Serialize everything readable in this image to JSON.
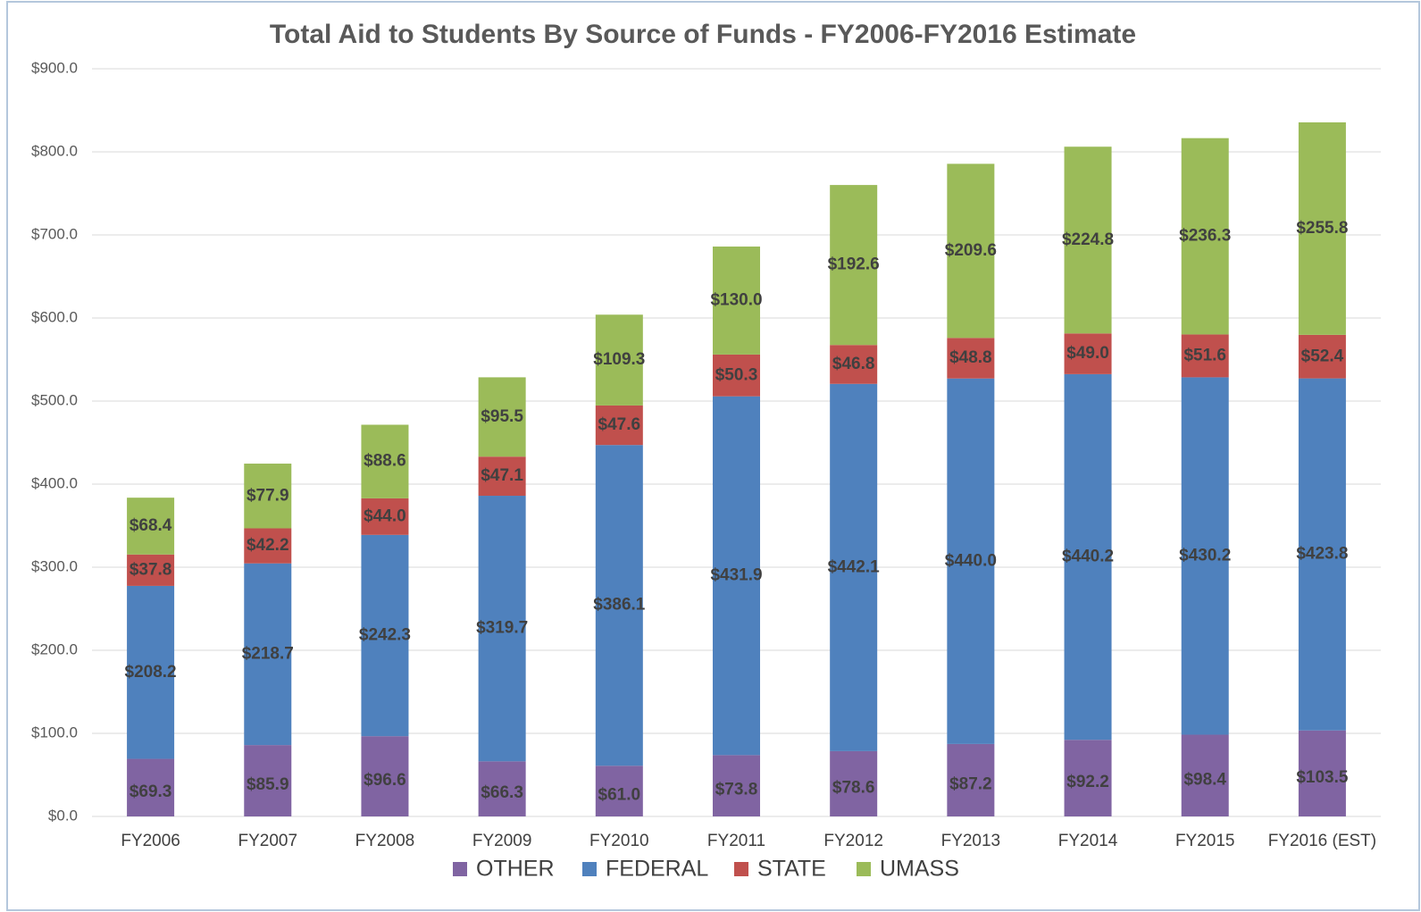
{
  "chart_data": {
    "type": "stacked_bar",
    "title": "Total Aid to Students By Source of Funds - FY2006-FY2016 Estimate",
    "categories": [
      "FY2006",
      "FY2007",
      "FY2008",
      "FY2009",
      "FY2010",
      "FY2011",
      "FY2012",
      "FY2013",
      "FY2014",
      "FY2015",
      "FY2016 (EST)"
    ],
    "series": [
      {
        "name": "OTHER",
        "color": "#8064a2",
        "values": [
          69.3,
          85.9,
          96.6,
          66.3,
          61.0,
          73.8,
          78.6,
          87.2,
          92.2,
          98.4,
          103.5
        ],
        "value_labels": [
          "$69.3",
          "$85.9",
          "$96.6",
          "$66.3",
          "$61.0",
          "$73.8",
          "$78.6",
          "$87.2",
          "$92.2",
          "$98.4",
          "$103.5"
        ]
      },
      {
        "name": "FEDERAL",
        "color": "#4f81bd",
        "values": [
          208.2,
          218.7,
          242.3,
          319.7,
          386.1,
          431.9,
          442.1,
          440.0,
          440.2,
          430.2,
          423.8
        ],
        "value_labels": [
          "$208.2",
          "$218.7",
          "$242.3",
          "$319.7",
          "$386.1",
          "$431.9",
          "$442.1",
          "$440.0",
          "$440.2",
          "$430.2",
          "$423.8"
        ]
      },
      {
        "name": "STATE",
        "color": "#c0504d",
        "values": [
          37.8,
          42.2,
          44.0,
          47.1,
          47.6,
          50.3,
          46.8,
          48.8,
          49.0,
          51.6,
          52.4
        ],
        "value_labels": [
          "$37.8",
          "$42.2",
          "$44.0",
          "$47.1",
          "$47.6",
          "$50.3",
          "$46.8",
          "$48.8",
          "$49.0",
          "$51.6",
          "$52.4"
        ]
      },
      {
        "name": "UMASS",
        "color": "#9bbb59",
        "values": [
          68.4,
          77.9,
          88.6,
          95.5,
          109.3,
          130.0,
          192.6,
          209.6,
          224.8,
          236.3,
          255.8
        ],
        "value_labels": [
          "$68.4",
          "$77.9",
          "$88.6",
          "$95.5",
          "$109.3",
          "$130.0",
          "$192.6",
          "$209.6",
          "$224.8",
          "$236.3",
          "$255.8"
        ]
      }
    ],
    "ylim": [
      0,
      900
    ],
    "yticks": [
      {
        "value": 0,
        "label": "$0.0"
      },
      {
        "value": 100,
        "label": "$100.0"
      },
      {
        "value": 200,
        "label": "$200.0"
      },
      {
        "value": 300,
        "label": "$300.0"
      },
      {
        "value": 400,
        "label": "$400.0"
      },
      {
        "value": 500,
        "label": "$500.0"
      },
      {
        "value": 600,
        "label": "$600.0"
      },
      {
        "value": 700,
        "label": "$700.0"
      },
      {
        "value": 800,
        "label": "$800.0"
      },
      {
        "value": 900,
        "label": "$900.0"
      }
    ],
    "grid": true,
    "legend": "bottom"
  }
}
